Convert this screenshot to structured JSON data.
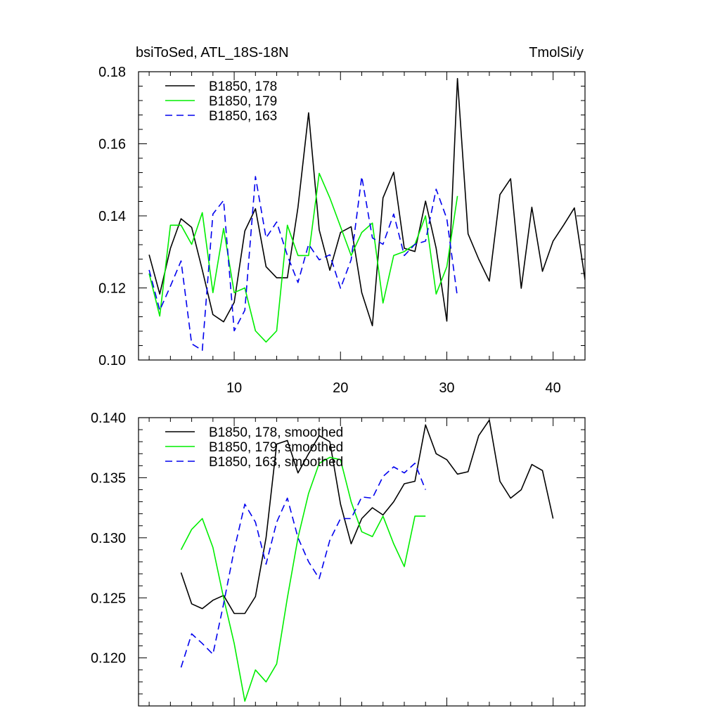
{
  "chart_data": [
    {
      "type": "line",
      "title_left": "bsiToSed, ATL_18S-18N",
      "title_right": "TmolSi/y",
      "xlim": [
        1,
        43
      ],
      "ylim": [
        0.1,
        0.18
      ],
      "x_ticks": [
        10,
        20,
        30,
        40
      ],
      "x_tick_labels": [
        "10",
        "20",
        "30",
        "40"
      ],
      "x_tick_labels_visible": true,
      "y_ticks": [
        0.1,
        0.12,
        0.14,
        0.16,
        0.18
      ],
      "y_tick_labels": [
        "0.10",
        "0.12",
        "0.14",
        "0.16",
        "0.18"
      ],
      "legend_position": "top-left",
      "series": [
        {
          "name": "B1850, 178",
          "color": "#000000",
          "dash": "solid",
          "x": [
            2,
            3,
            4,
            5,
            6,
            7,
            8,
            9,
            10,
            11,
            12,
            13,
            14,
            15,
            16,
            17,
            18,
            19,
            20,
            21,
            22,
            23,
            24,
            25,
            26,
            27,
            28,
            29,
            30,
            31,
            32,
            33,
            34,
            35,
            36,
            37,
            38,
            39,
            40,
            41,
            42,
            43
          ],
          "values": [
            0.1292,
            0.1183,
            0.131,
            0.1392,
            0.1368,
            0.125,
            0.1126,
            0.1106,
            0.116,
            0.1358,
            0.142,
            0.1259,
            0.1228,
            0.1228,
            0.1424,
            0.1686,
            0.1361,
            0.1249,
            0.1354,
            0.137,
            0.1187,
            0.1095,
            0.145,
            0.1521,
            0.131,
            0.1301,
            0.1441,
            0.131,
            0.1108,
            0.1781,
            0.135,
            0.128,
            0.1219,
            0.1459,
            0.1503,
            0.1199,
            0.1424,
            0.1246,
            0.133,
            0.1375,
            0.1422,
            0.1223
          ]
        },
        {
          "name": "B1850, 179",
          "color": "#00ee00",
          "dash": "solid",
          "x": [
            2,
            3,
            4,
            5,
            6,
            7,
            8,
            9,
            10,
            11,
            12,
            13,
            14,
            15,
            16,
            17,
            18,
            19,
            20,
            21,
            22,
            23,
            24,
            25,
            26,
            27,
            28,
            29,
            30,
            31
          ],
          "values": [
            0.124,
            0.1122,
            0.1374,
            0.1374,
            0.1321,
            0.1409,
            0.1187,
            0.1365,
            0.1187,
            0.12,
            0.1081,
            0.105,
            0.1081,
            0.1374,
            0.129,
            0.129,
            0.1518,
            0.145,
            0.137,
            0.129,
            0.1354,
            0.138,
            0.1158,
            0.129,
            0.1301,
            0.1321,
            0.14,
            0.1183,
            0.1259,
            0.1455
          ]
        },
        {
          "name": "B1850, 163",
          "color": "#0000ee",
          "dash": "dashed",
          "x": [
            2,
            3,
            4,
            5,
            6,
            7,
            8,
            9,
            10,
            11,
            12,
            13,
            14,
            15,
            16,
            17,
            18,
            19,
            20,
            21,
            22,
            23,
            24,
            25,
            26,
            27,
            28,
            29,
            30,
            31
          ],
          "values": [
            0.125,
            0.1138,
            0.1205,
            0.1275,
            0.1045,
            0.1027,
            0.1405,
            0.1443,
            0.1081,
            0.1138,
            0.1509,
            0.1339,
            0.1383,
            0.129,
            0.1215,
            0.1321,
            0.1278,
            0.1292,
            0.1199,
            0.1278,
            0.1509,
            0.1339,
            0.1321,
            0.1405,
            0.129,
            0.1321,
            0.133,
            0.1474,
            0.1392,
            0.1174
          ]
        }
      ]
    },
    {
      "type": "line",
      "xlim": [
        1,
        43
      ],
      "ylim": [
        0.116,
        0.14
      ],
      "x_ticks": [
        10,
        20,
        30,
        40
      ],
      "x_tick_labels_visible": false,
      "y_ticks": [
        0.12,
        0.125,
        0.13,
        0.135,
        0.14
      ],
      "y_tick_labels": [
        "0.120",
        "0.125",
        "0.130",
        "0.135",
        "0.140"
      ],
      "legend_position": "top-left",
      "series": [
        {
          "name": "B1850, 178, smoothed",
          "color": "#000000",
          "dash": "solid",
          "x": [
            5,
            6,
            7,
            8,
            9,
            10,
            11,
            12,
            13,
            14,
            15,
            16,
            17,
            18,
            19,
            20,
            21,
            22,
            23,
            24,
            25,
            26,
            27,
            28,
            29,
            30,
            31,
            32,
            33,
            34,
            35,
            36,
            37,
            38,
            39,
            40
          ],
          "values": [
            0.1271,
            0.1245,
            0.1241,
            0.1248,
            0.1252,
            0.1237,
            0.1237,
            0.1251,
            0.13,
            0.1378,
            0.1381,
            0.1354,
            0.137,
            0.1385,
            0.138,
            0.1328,
            0.1295,
            0.1316,
            0.1325,
            0.1319,
            0.133,
            0.1345,
            0.1347,
            0.1394,
            0.137,
            0.1365,
            0.1353,
            0.1355,
            0.1385,
            0.1398,
            0.1347,
            0.1333,
            0.134,
            0.1361,
            0.1356,
            0.1316
          ]
        },
        {
          "name": "B1850, 179, smoothed",
          "color": "#00ee00",
          "dash": "solid",
          "x": [
            5,
            6,
            7,
            8,
            9,
            10,
            11,
            12,
            13,
            14,
            15,
            16,
            17,
            18,
            19,
            20,
            21,
            22,
            23,
            24,
            25,
            26,
            27,
            28
          ],
          "values": [
            0.129,
            0.1307,
            0.1316,
            0.1292,
            0.125,
            0.1212,
            0.1164,
            0.119,
            0.118,
            0.1195,
            0.125,
            0.13,
            0.1337,
            0.1362,
            0.1367,
            0.1365,
            0.133,
            0.1305,
            0.1301,
            0.1318,
            0.1295,
            0.1276,
            0.1318,
            0.1318
          ]
        },
        {
          "name": "B1850, 163, smoothed",
          "color": "#0000ee",
          "dash": "dashed",
          "x": [
            5,
            6,
            7,
            8,
            9,
            10,
            11,
            12,
            13,
            14,
            15,
            16,
            17,
            18,
            19,
            20,
            21,
            22,
            23,
            24,
            25,
            26,
            27,
            28
          ],
          "values": [
            0.1192,
            0.122,
            0.1212,
            0.1203,
            0.1245,
            0.129,
            0.1328,
            0.1313,
            0.1278,
            0.1313,
            0.1333,
            0.13,
            0.128,
            0.1266,
            0.1298,
            0.1316,
            0.1316,
            0.1334,
            0.1333,
            0.1351,
            0.1359,
            0.1354,
            0.1362,
            0.134
          ]
        }
      ]
    }
  ]
}
